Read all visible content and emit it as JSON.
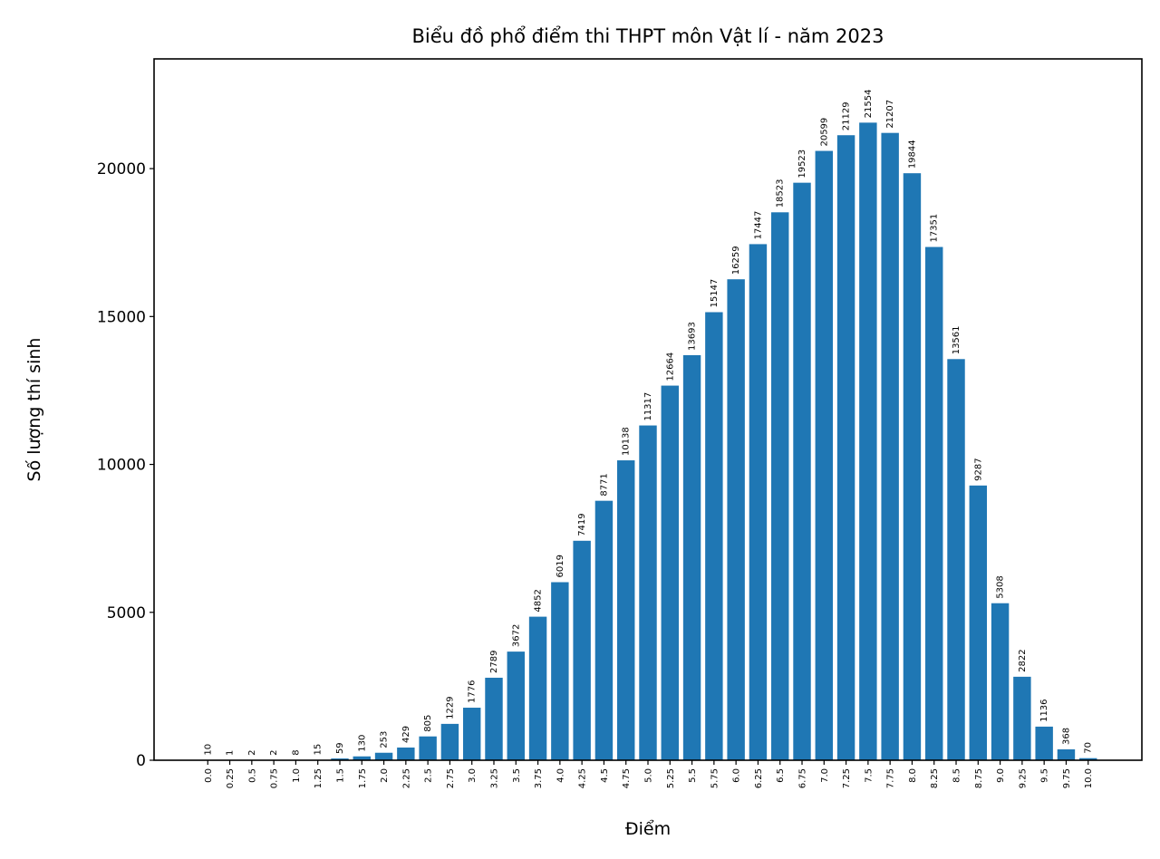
{
  "chart_data": {
    "type": "bar",
    "title": "Biểu đồ phổ điểm thi THPT môn Vật lí - năm 2023",
    "xlabel": "Điểm",
    "ylabel": "Số lượng thí sinh",
    "categories": [
      "0.0",
      "0.25",
      "0.5",
      "0.75",
      "1.0",
      "1.25",
      "1.5",
      "1.75",
      "2.0",
      "2.25",
      "2.5",
      "2.75",
      "3.0",
      "3.25",
      "3.5",
      "3.75",
      "4.0",
      "4.25",
      "4.5",
      "4.75",
      "5.0",
      "5.25",
      "5.5",
      "5.75",
      "6.0",
      "6.25",
      "6.5",
      "6.75",
      "7.0",
      "7.25",
      "7.5",
      "7.75",
      "8.0",
      "8.25",
      "8.5",
      "8.75",
      "9.0",
      "9.25",
      "9.5",
      "9.75",
      "10.0"
    ],
    "values": [
      10,
      1,
      2,
      2,
      8,
      15,
      59,
      130,
      253,
      429,
      805,
      1229,
      1776,
      2789,
      3672,
      4852,
      6019,
      7419,
      8771,
      10138,
      11317,
      12664,
      13693,
      15147,
      16259,
      17447,
      18523,
      19523,
      20599,
      21129,
      21554,
      21207,
      19844,
      17351,
      13561,
      9287,
      5308,
      2822,
      1136,
      368,
      70
    ],
    "yticks": [
      "0",
      "5000",
      "10000",
      "15000",
      "20000"
    ],
    "ylim": [
      0,
      23709
    ],
    "xlim": [
      -0.61,
      10.61
    ],
    "grid": false,
    "bar_color": "#1f77b4",
    "data_labels": true
  }
}
